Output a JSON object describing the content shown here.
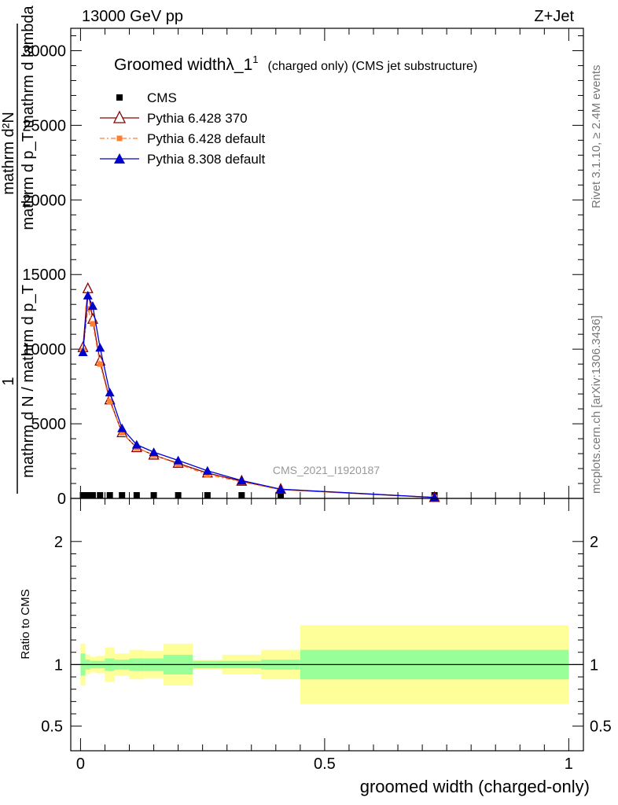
{
  "header": {
    "energy_label": "13000 GeV pp",
    "process_label": "Z+Jet"
  },
  "side_labels": {
    "rivet": "Rivet 3.1.10, ≥ 2.4M events",
    "mcplots": "mcplots.cern.ch [arXiv:1306.3436]"
  },
  "watermark": "CMS_2021_I1920187",
  "title": {
    "main": "Groomed widthλ_1",
    "sup": "1",
    "rest": "(charged only) (CMS jet substructure)"
  },
  "ylabel_main": {
    "num1": "1",
    "den1": "mathrm d N / mathrm d p_T",
    "num2": "mathrm d²N",
    "den2": "mathrm d p_T mathrm d lambda"
  },
  "ylabel_ratio": "Ratio to CMS",
  "xlabel": "groomed width (charged-only)",
  "legend": [
    {
      "label": "CMS",
      "color": "#000000",
      "marker": "square-filled"
    },
    {
      "label": "Pythia 6.428 370",
      "color": "#8b0000",
      "marker": "triangle-open"
    },
    {
      "label": "Pythia 6.428 default",
      "color": "#ff7f32",
      "marker": "square-small-dashdot"
    },
    {
      "label": "Pythia 8.308 default",
      "color": "#0000cc",
      "marker": "triangle-filled"
    }
  ],
  "chart_data": {
    "type": "line",
    "x": [
      0.005,
      0.015,
      0.025,
      0.04,
      0.06,
      0.085,
      0.115,
      0.15,
      0.2,
      0.26,
      0.33,
      0.41,
      0.725
    ],
    "xlim": [
      -0.02,
      1.03
    ],
    "ylim": [
      0,
      31500
    ],
    "yticks": [
      0,
      5000,
      10000,
      15000,
      20000,
      25000,
      30000
    ],
    "xticks": [
      0,
      0.5,
      1
    ],
    "xticklabels": [
      "0",
      "0.5",
      "1"
    ],
    "series": [
      {
        "name": "CMS",
        "values": [
          0,
          0,
          0,
          0,
          0,
          0,
          0,
          0,
          0,
          0,
          0,
          0,
          0
        ]
      },
      {
        "name": "Pythia 6.428 370",
        "values": [
          10100,
          14050,
          12000,
          9200,
          6600,
          4400,
          3400,
          2900,
          2350,
          1700,
          1150,
          600,
          60
        ]
      },
      {
        "name": "Pythia 6.428 default",
        "values": [
          9900,
          12700,
          11700,
          9000,
          6500,
          4400,
          3400,
          2900,
          2300,
          1600,
          1100,
          580,
          55
        ]
      },
      {
        "name": "Pythia 8.308 default",
        "values": [
          9800,
          13600,
          12900,
          10100,
          7100,
          4700,
          3600,
          3100,
          2550,
          1850,
          1200,
          620,
          65
        ]
      }
    ],
    "ratio_panel": {
      "ylim": [
        0.3,
        2.35
      ],
      "yticks": [
        0.5,
        1,
        2
      ],
      "yticklabels": [
        "0.5",
        "1",
        "2"
      ],
      "bins": [
        0.0,
        0.01,
        0.02,
        0.03,
        0.05,
        0.07,
        0.1,
        0.13,
        0.17,
        0.23,
        0.29,
        0.37,
        0.45,
        1.0
      ],
      "stat_band": [
        0.09,
        0.04,
        0.03,
        0.03,
        0.05,
        0.04,
        0.05,
        0.05,
        0.08,
        0.03,
        0.03,
        0.04,
        0.12
      ],
      "total_band": [
        0.17,
        0.08,
        0.06,
        0.07,
        0.14,
        0.09,
        0.12,
        0.11,
        0.17,
        0.04,
        0.08,
        0.12,
        0.32
      ]
    },
    "colors": {
      "stat": "#99ff99",
      "total": "#ffff99",
      "data": "#000000"
    }
  }
}
